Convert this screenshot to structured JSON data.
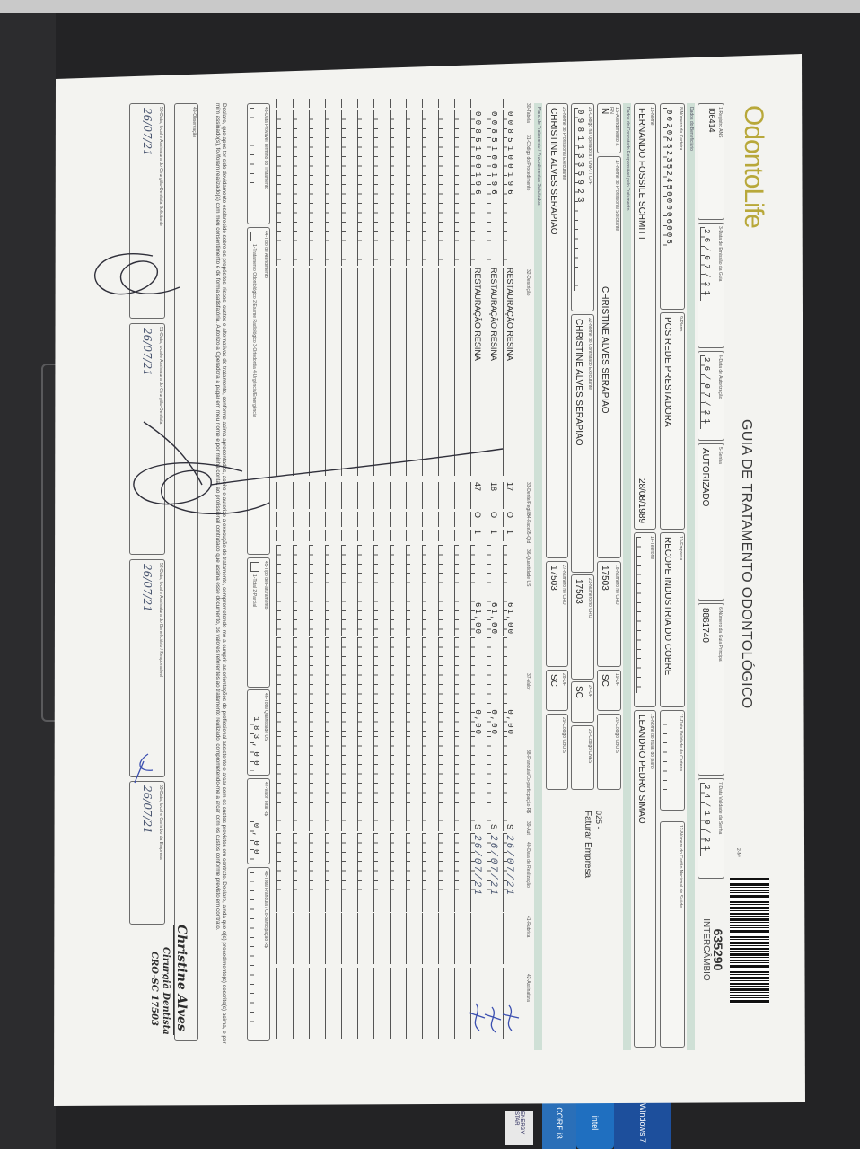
{
  "header": {
    "logo": "OdontoLife",
    "title": "GUIA DE TRATAMENTO ODONTOLÓGICO",
    "guide_number_label": "2-Nº",
    "guide_number": "635290",
    "guide_type": "INTERCÂMBIO"
  },
  "guide": {
    "f1": {
      "label": "1-Registro ANS",
      "value": "I06414"
    },
    "f3": {
      "label": "3-Data de Emissão da Guia",
      "value": "26/07/21"
    },
    "f4": {
      "label": "4-Data de Autorização",
      "value": "26/07/21"
    },
    "f5": {
      "label": "5-Senha",
      "value": "AUTORIZADO"
    },
    "f6": {
      "label": "6-Número da Guia Principal",
      "value": "8861740"
    },
    "f7": {
      "label": "7-Data Validade da Senha",
      "value": "24/10/21"
    }
  },
  "beneficiary": {
    "band": "Dados do Beneficiário",
    "f8": {
      "label": "8-Número da Carteira",
      "value": "00202523524500006005"
    },
    "f9": {
      "label": "9-Plano",
      "value": "POS REDE PRESTADORA"
    },
    "f10": {
      "label": "10-Empresa",
      "value": "RECOPE INDUSTRIA DO COBRE"
    },
    "f11": {
      "label": "11-Data Validade da Carteira",
      "value": ""
    },
    "f12": {
      "label": "12-Número do Cartão Nacional de Saúde",
      "value": ""
    },
    "f13": {
      "label": "13-Nome",
      "value": "FERNANDO FOSSILE SCHMITT",
      "birth_date": "28/08/1989"
    },
    "f14": {
      "label": "14-Telefone",
      "value": ""
    },
    "f15": {
      "label": "15-Nome do titular do plano",
      "value": "LEANDRO PEDRO SIMAO"
    }
  },
  "contractor": {
    "band": "Dados do Contratado Responsável pelo Tratamento",
    "f16": {
      "label": "16-Atendimento a RN",
      "value": "N"
    },
    "f17": {
      "label": "17-Nome do Profissional Solicitante",
      "value": "CHRISTINE ALVES SERAPIAO"
    },
    "f18": {
      "label": "18-Número no CRO",
      "value": "17503"
    },
    "f19": {
      "label": "19-UF",
      "value": "SC"
    },
    "f20": {
      "label": "20-Código CBO S",
      "value": ""
    },
    "f21": {
      "label": "21-Código na Operadora / CNPJ / CPF",
      "value": "09811335923"
    },
    "f22": {
      "label": "22-Nome do Contratado Executante",
      "value": "CHRISTINE ALVES SERAPIAO"
    },
    "f23": {
      "label": "23-Número no CRO",
      "value": "17503"
    },
    "f24": {
      "label": "24-UF",
      "value": "SC"
    },
    "f25": {
      "label": "25-Código CNES",
      "value": ""
    },
    "f26": {
      "label": "26-Nome do Profissional Executante",
      "value": "CHRISTINE ALVES SERAPIAO"
    },
    "f27": {
      "label": "27-Número no CRO",
      "value": "17503"
    },
    "f28": {
      "label": "28-UF",
      "value": "SC"
    },
    "f29": {
      "label": "29-Código CBO S",
      "value": ""
    },
    "billing_code": "025 -",
    "billing_text": "Faturar Empresa"
  },
  "procedures": {
    "band": "Plano de Tratamento / Procedimentos Solicitados",
    "columns": {
      "table": "30-Tabela",
      "code": "31-Código do Procedimento",
      "description": "32-Descrição",
      "tooth": "33-Dente/Região",
      "face": "34-Face",
      "qty": "35-Qtd",
      "us": "36-Quantidade US",
      "value": "37-Valor",
      "copay": "38-Franquia/Co-participação R$",
      "aut": "39-Aut",
      "date": "40-Data de Realização",
      "initials": "41-Rubrica",
      "signature": "42-Assinatura"
    },
    "rows": [
      {
        "table": "",
        "code": "0085100196",
        "description": "RESTAURAÇÃO RESINA",
        "tooth": "17",
        "face": "O",
        "qty": "1",
        "us": "61,00",
        "value": "0,00",
        "copay": "",
        "aut": "S",
        "date": "26/07/21"
      },
      {
        "table": "",
        "code": "0085100196",
        "description": "RESTAURAÇÃO RESINA",
        "tooth": "18",
        "face": "O",
        "qty": "1",
        "us": "61,00",
        "value": "0,00",
        "copay": "",
        "aut": "S",
        "date": "26/07/21"
      },
      {
        "table": "",
        "code": "0085100196",
        "description": "RESTAURAÇÃO RESINA",
        "tooth": "47",
        "face": "O",
        "qty": "1",
        "us": "61,00",
        "value": "0,00",
        "copay": "",
        "aut": "S",
        "date": "26/07/21"
      }
    ]
  },
  "totals": {
    "f43": {
      "label": "43-Data Provável Término do Tratamento",
      "value": ""
    },
    "f44": {
      "label": "44-Tipo de Atendimento",
      "value": "",
      "options": "1-Tratamento Odontológico 2-Exame Radiológico 3-Ortodontia 4-Urgência/Emergência"
    },
    "f45": {
      "label": "45-Tipo de Faturamento",
      "value": "",
      "options": "1-Total 2-Parcial"
    },
    "f46": {
      "label": "46-Total Quantidade US",
      "value": "183,00"
    },
    "f47": {
      "label": "47-Valor Total R$",
      "value": "0,00"
    },
    "f48": {
      "label": "48-Total Franquia / Co-participação R$",
      "value": ""
    }
  },
  "declaration": "Declaro, que após ter sido devidamente esclarecido sobre os propósitos, riscos, custos e alternativas de tratamento, conforme acima apresentados, aceito e autorizo a execução do tratamento, comprometendo-me a cumprir as orientações do profissional assistente e arcar com os custos previstos em contrato. Declaro, ainda que o(s) procedimento(s) descrito(s) acima, e por mim assinado(s), foi/foram realizado(s) com meu consentimento e de forma satisfatória. Autorizo a Operadora a pagar em meu nome e por minha conta, ao profissional contratado que assina esse documento, os valores referentes ao tratamento realizado, comprometendo-me a arcar com os custos conforme previsto em contrato.",
  "observation": {
    "label": "49-Observação",
    "value": ""
  },
  "signatures": {
    "s50": {
      "label": "50-Data, local e Assinatura do Cirurgião-Dentista Solicitante",
      "date": "26/07/21"
    },
    "s51": {
      "label": "51-Data, local e Assinatura do Cirurgião-Dentista",
      "date": "26/07/21"
    },
    "s52": {
      "label": "52-Data, local e Assinatura do Beneficiário / Responsável",
      "date": "26/07/21"
    },
    "s53": {
      "label": "53-Data, local e Carimbo da Empresa",
      "date": "26/07/21"
    }
  },
  "stamp": {
    "name": "Christine Alves",
    "title": "Cirurgiã Dentista",
    "registry": "CRO-SC 17503"
  },
  "laptop_stickers": {
    "os": "Windows 7",
    "cpu_brand": "intel",
    "cpu_model": "CORE i3",
    "energy": "ENERGY STAR"
  },
  "colors": {
    "band": "#cfe0d6",
    "logo": "#b8a83a",
    "ink": "#4a5670"
  }
}
